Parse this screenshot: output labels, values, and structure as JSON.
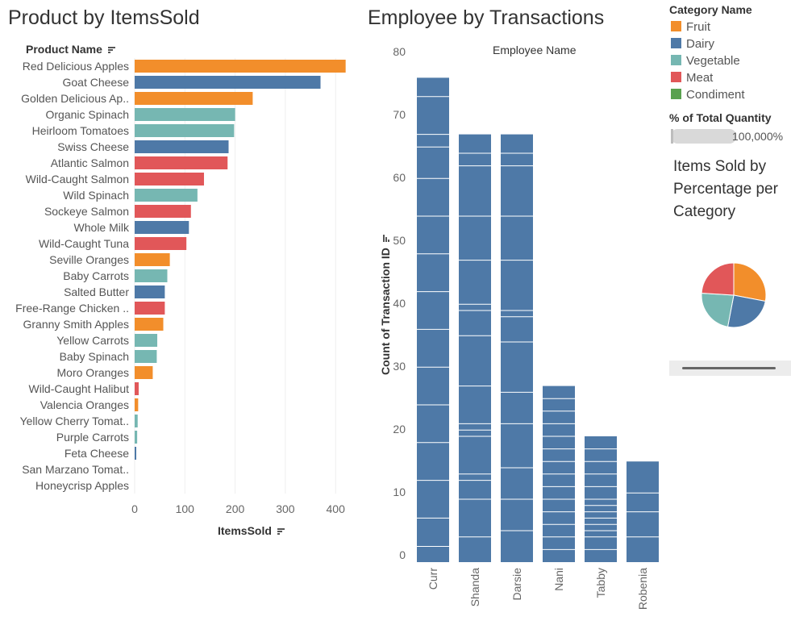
{
  "left_panel": {
    "title": "Product by ItemsSold"
  },
  "right_panel": {
    "title": "Employee by Transactions"
  },
  "legend": {
    "title": "Category Name",
    "items": [
      {
        "label": "Fruit",
        "color": "#f28e2b"
      },
      {
        "label": "Dairy",
        "color": "#4e79a7"
      },
      {
        "label": "Vegetable",
        "color": "#76b7b2"
      },
      {
        "label": "Meat",
        "color": "#e15759"
      },
      {
        "label": "Condiment",
        "color": "#59a14f"
      }
    ]
  },
  "percent_filter": {
    "title": "% of Total Quantity",
    "value_label": "100,000%"
  },
  "pie_panel": {
    "title": "Items Sold by Percentage per Category"
  },
  "chart_data": [
    {
      "type": "bar",
      "orientation": "horizontal",
      "title": "Product by ItemsSold",
      "ylabel": "Product Name",
      "xlabel": "ItemsSold",
      "xlim": [
        0,
        440
      ],
      "xticks": [
        0,
        100,
        200,
        300,
        400
      ],
      "grid": true,
      "categories": [
        "Red Delicious Apples",
        "Goat Cheese",
        "Golden Delicious Ap..",
        "Organic Spinach",
        "Heirloom Tomatoes",
        "Swiss Cheese",
        "Atlantic Salmon",
        "Wild-Caught Salmon",
        "Wild Spinach",
        "Sockeye Salmon",
        "Whole Milk",
        "Wild-Caught Tuna",
        "Seville Oranges",
        "Baby Carrots",
        "Salted Butter",
        "Free-Range Chicken ..",
        "Granny Smith Apples",
        "Yellow Carrots",
        "Baby Spinach",
        "Moro Oranges",
        "Wild-Caught Halibut",
        "Valencia Oranges",
        "Yellow Cherry Tomat..",
        "Purple Carrots",
        "Feta Cheese",
        "San Marzano Tomat..",
        "Honeycrisp Apples"
      ],
      "values": [
        420,
        370,
        235,
        200,
        198,
        187,
        185,
        138,
        125,
        112,
        108,
        103,
        70,
        65,
        60,
        60,
        57,
        45,
        44,
        36,
        8,
        7,
        6,
        5,
        3,
        0,
        0
      ],
      "category_of_bar": [
        "Fruit",
        "Dairy",
        "Fruit",
        "Vegetable",
        "Vegetable",
        "Dairy",
        "Meat",
        "Meat",
        "Vegetable",
        "Meat",
        "Dairy",
        "Meat",
        "Fruit",
        "Vegetable",
        "Dairy",
        "Meat",
        "Fruit",
        "Vegetable",
        "Vegetable",
        "Fruit",
        "Meat",
        "Fruit",
        "Vegetable",
        "Vegetable",
        "Dairy",
        "Vegetable",
        "Fruit"
      ]
    },
    {
      "type": "bar",
      "orientation": "vertical",
      "title": "Employee by Transactions",
      "xlabel": "Employee Name",
      "ylabel": "Count of Transaction ID",
      "ylim": [
        0,
        80
      ],
      "yticks": [
        0,
        10,
        20,
        30,
        40,
        50,
        60,
        70,
        80
      ],
      "grid": false,
      "categories": [
        "Curr",
        "Shanda",
        "Darsie",
        "Nani",
        "Tabby",
        "Robenia"
      ],
      "values": [
        77,
        68,
        68,
        28,
        20,
        16
      ],
      "color": "#4e79a7",
      "segment_boundaries": [
        [
          2.5,
          7,
          13,
          19,
          25,
          31,
          37,
          43,
          49,
          55,
          61,
          66,
          68,
          74
        ],
        [
          4,
          10,
          13,
          14,
          20,
          21,
          22,
          28,
          36,
          40,
          41,
          48,
          55,
          63,
          65
        ],
        [
          5,
          10,
          15,
          22,
          27,
          35,
          39,
          40,
          48,
          55,
          63,
          65
        ],
        [
          2,
          4,
          6,
          8,
          10,
          12,
          14,
          16,
          18,
          20,
          22,
          24,
          26
        ],
        [
          2,
          4,
          5,
          6,
          7,
          8,
          9,
          10,
          12,
          14,
          16,
          18
        ],
        [
          4,
          8,
          11
        ]
      ]
    },
    {
      "type": "pie",
      "title": "Items Sold by Percentage per Category",
      "labels": [
        "Fruit",
        "Dairy",
        "Vegetable",
        "Meat"
      ],
      "values": [
        28,
        25,
        23,
        24
      ],
      "colors": [
        "#f28e2b",
        "#4e79a7",
        "#76b7b2",
        "#e15759"
      ]
    }
  ]
}
